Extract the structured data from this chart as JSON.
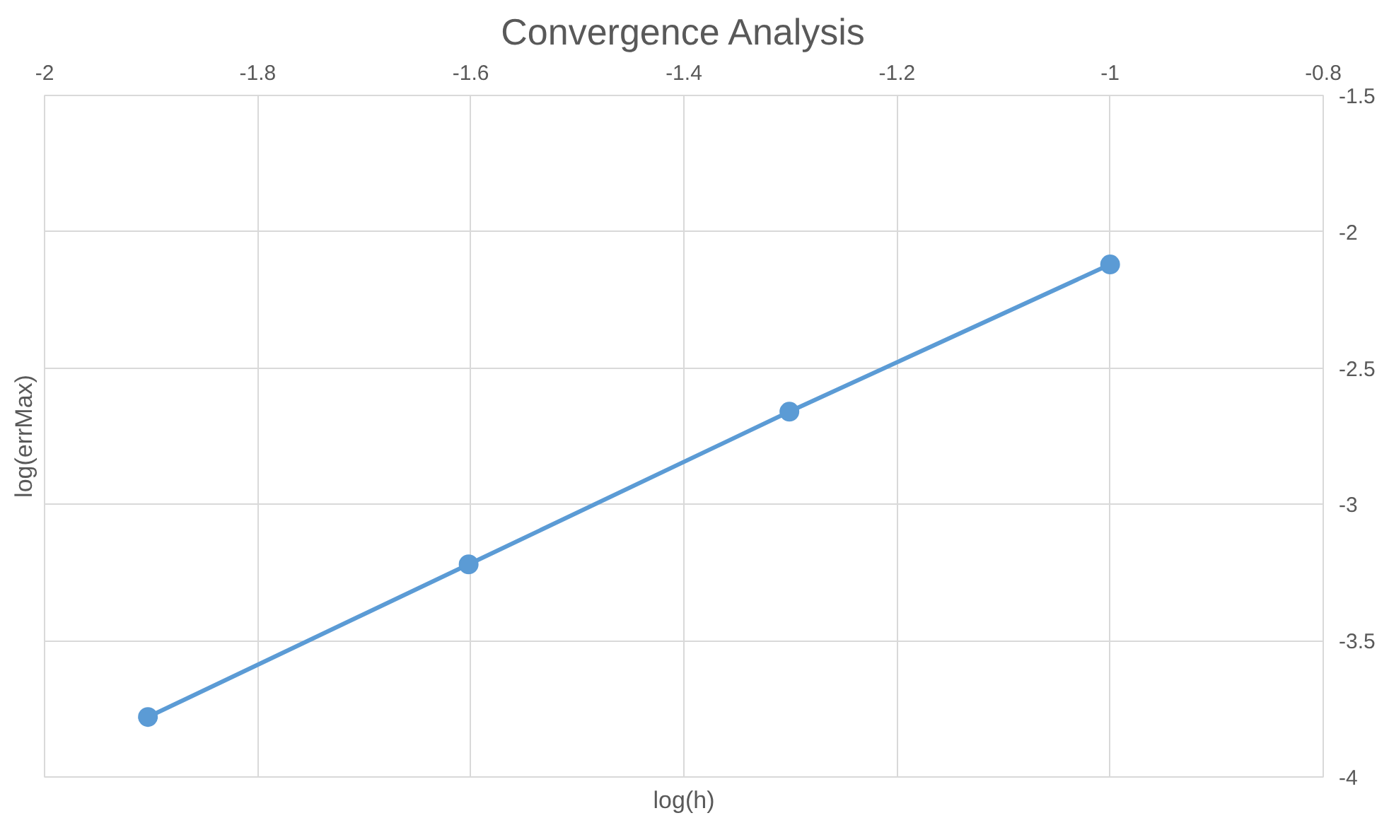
{
  "chart_data": {
    "type": "line",
    "title": "Convergence Analysis",
    "xlabel": "log(h)",
    "ylabel": "log(errMax)",
    "x": [
      -1.903,
      -1.602,
      -1.301,
      -1.0
    ],
    "series": [
      {
        "color": "#5b9bd5",
        "values": [
          -3.78,
          -3.22,
          -2.66,
          -2.12
        ]
      }
    ],
    "xlim": [
      -2,
      -0.8
    ],
    "xticks": [
      -2,
      -1.8,
      -1.6,
      -1.4,
      -1.2,
      -1,
      -0.8
    ],
    "ylim": [
      -4,
      -1.5
    ],
    "yticks": [
      -4,
      -3.5,
      -3,
      -2.5,
      -2,
      -1.5
    ],
    "grid": true,
    "marker": "circle",
    "line_style": "solid"
  }
}
